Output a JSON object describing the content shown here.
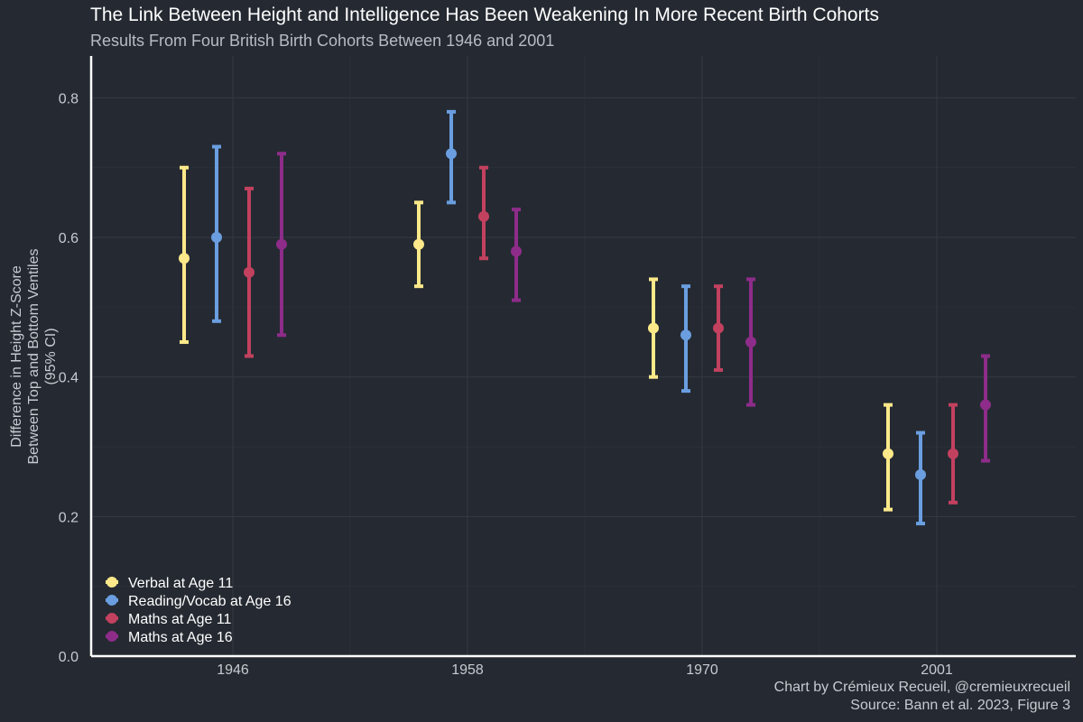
{
  "chart_data": {
    "type": "errorbar",
    "title": "The Link Between Height and Intelligence Has Been Weakening In More Recent Birth Cohorts",
    "subtitle": "Results From Four British Birth Cohorts Between 1946 and 2001",
    "ylabel_lines": [
      "Difference in Height Z-Score",
      "Between Top and Bottom Ventiles",
      "(95% CI)"
    ],
    "xlabel": "",
    "categories": [
      "1946",
      "1958",
      "1970",
      "2001"
    ],
    "ylim": [
      0,
      0.86
    ],
    "yticks": [
      0.0,
      0.2,
      0.4,
      0.6,
      0.8
    ],
    "ytick_labels": [
      "0.0",
      "0.2",
      "0.4",
      "0.6",
      "0.8"
    ],
    "grid": true,
    "legend_position": "bottom-left",
    "series": [
      {
        "name": "Verbal at Age 11",
        "color": "#fde98a",
        "values": [
          0.57,
          0.59,
          0.47,
          0.29
        ],
        "lower": [
          0.45,
          0.53,
          0.4,
          0.21
        ],
        "upper": [
          0.7,
          0.65,
          0.54,
          0.36
        ]
      },
      {
        "name": "Reading/Vocab at Age 16",
        "color": "#6a9ee0",
        "values": [
          0.6,
          0.72,
          0.46,
          0.26
        ],
        "lower": [
          0.48,
          0.65,
          0.38,
          0.19
        ],
        "upper": [
          0.73,
          0.78,
          0.53,
          0.32
        ]
      },
      {
        "name": "Maths at Age 11",
        "color": "#c2415f",
        "values": [
          0.55,
          0.63,
          0.47,
          0.29
        ],
        "lower": [
          0.43,
          0.57,
          0.41,
          0.22
        ],
        "upper": [
          0.67,
          0.7,
          0.53,
          0.36
        ]
      },
      {
        "name": "Maths at Age 16",
        "color": "#8e2c8a",
        "values": [
          0.59,
          0.58,
          0.45,
          0.36
        ],
        "lower": [
          0.46,
          0.51,
          0.36,
          0.28
        ],
        "upper": [
          0.72,
          0.64,
          0.54,
          0.43
        ]
      }
    ],
    "caption_lines": [
      "Chart by Crémieux Recueil, @cremieuxrecueil",
      "Source: Bann et al. 2023, Figure 3"
    ]
  },
  "colors": {
    "background": "#252a32",
    "grid": "#353a42",
    "axis": "#ffffff"
  }
}
